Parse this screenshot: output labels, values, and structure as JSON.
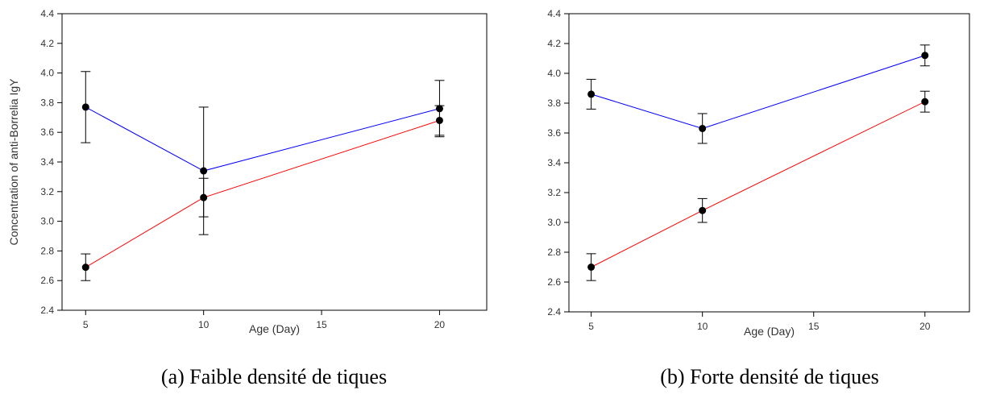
{
  "chart_data": [
    {
      "type": "line",
      "xlabel": "Age (Day)",
      "ylabel": "Concentration of anti-Borrelia IgY",
      "caption": "(a) Faible densité de tiques",
      "xlim": [
        4,
        22
      ],
      "ylim": [
        2.4,
        4.4
      ],
      "xticks": [
        5,
        10,
        15,
        20
      ],
      "yticks": [
        2.4,
        2.6,
        2.8,
        3.0,
        3.2,
        3.4,
        3.6,
        3.8,
        4.0,
        4.2,
        4.4
      ],
      "series": [
        {
          "color": "#0000ff",
          "x": [
            5,
            10,
            20
          ],
          "y": [
            3.77,
            3.34,
            3.76
          ],
          "err": [
            0.24,
            0.43,
            0.19
          ]
        },
        {
          "color": "#ff0000",
          "x": [
            5,
            10,
            20
          ],
          "y": [
            2.69,
            3.16,
            3.68
          ],
          "err": [
            0.09,
            0.13,
            0.1
          ]
        }
      ]
    },
    {
      "type": "line",
      "xlabel": "Age (Day)",
      "ylabel": "",
      "caption": "(b) Forte densité de tiques",
      "xlim": [
        4,
        22
      ],
      "ylim": [
        2.4,
        4.4
      ],
      "xticks": [
        5,
        10,
        15,
        20
      ],
      "yticks": [
        2.4,
        2.6,
        2.8,
        3.0,
        3.2,
        3.4,
        3.6,
        3.8,
        4.0,
        4.2,
        4.4
      ],
      "series": [
        {
          "color": "#0000ff",
          "x": [
            5,
            10,
            20
          ],
          "y": [
            3.86,
            3.63,
            4.12
          ],
          "err": [
            0.1,
            0.1,
            0.07
          ]
        },
        {
          "color": "#ff0000",
          "x": [
            5,
            10,
            20
          ],
          "y": [
            2.7,
            3.08,
            3.81
          ],
          "err": [
            0.09,
            0.08,
            0.07
          ]
        }
      ]
    }
  ]
}
